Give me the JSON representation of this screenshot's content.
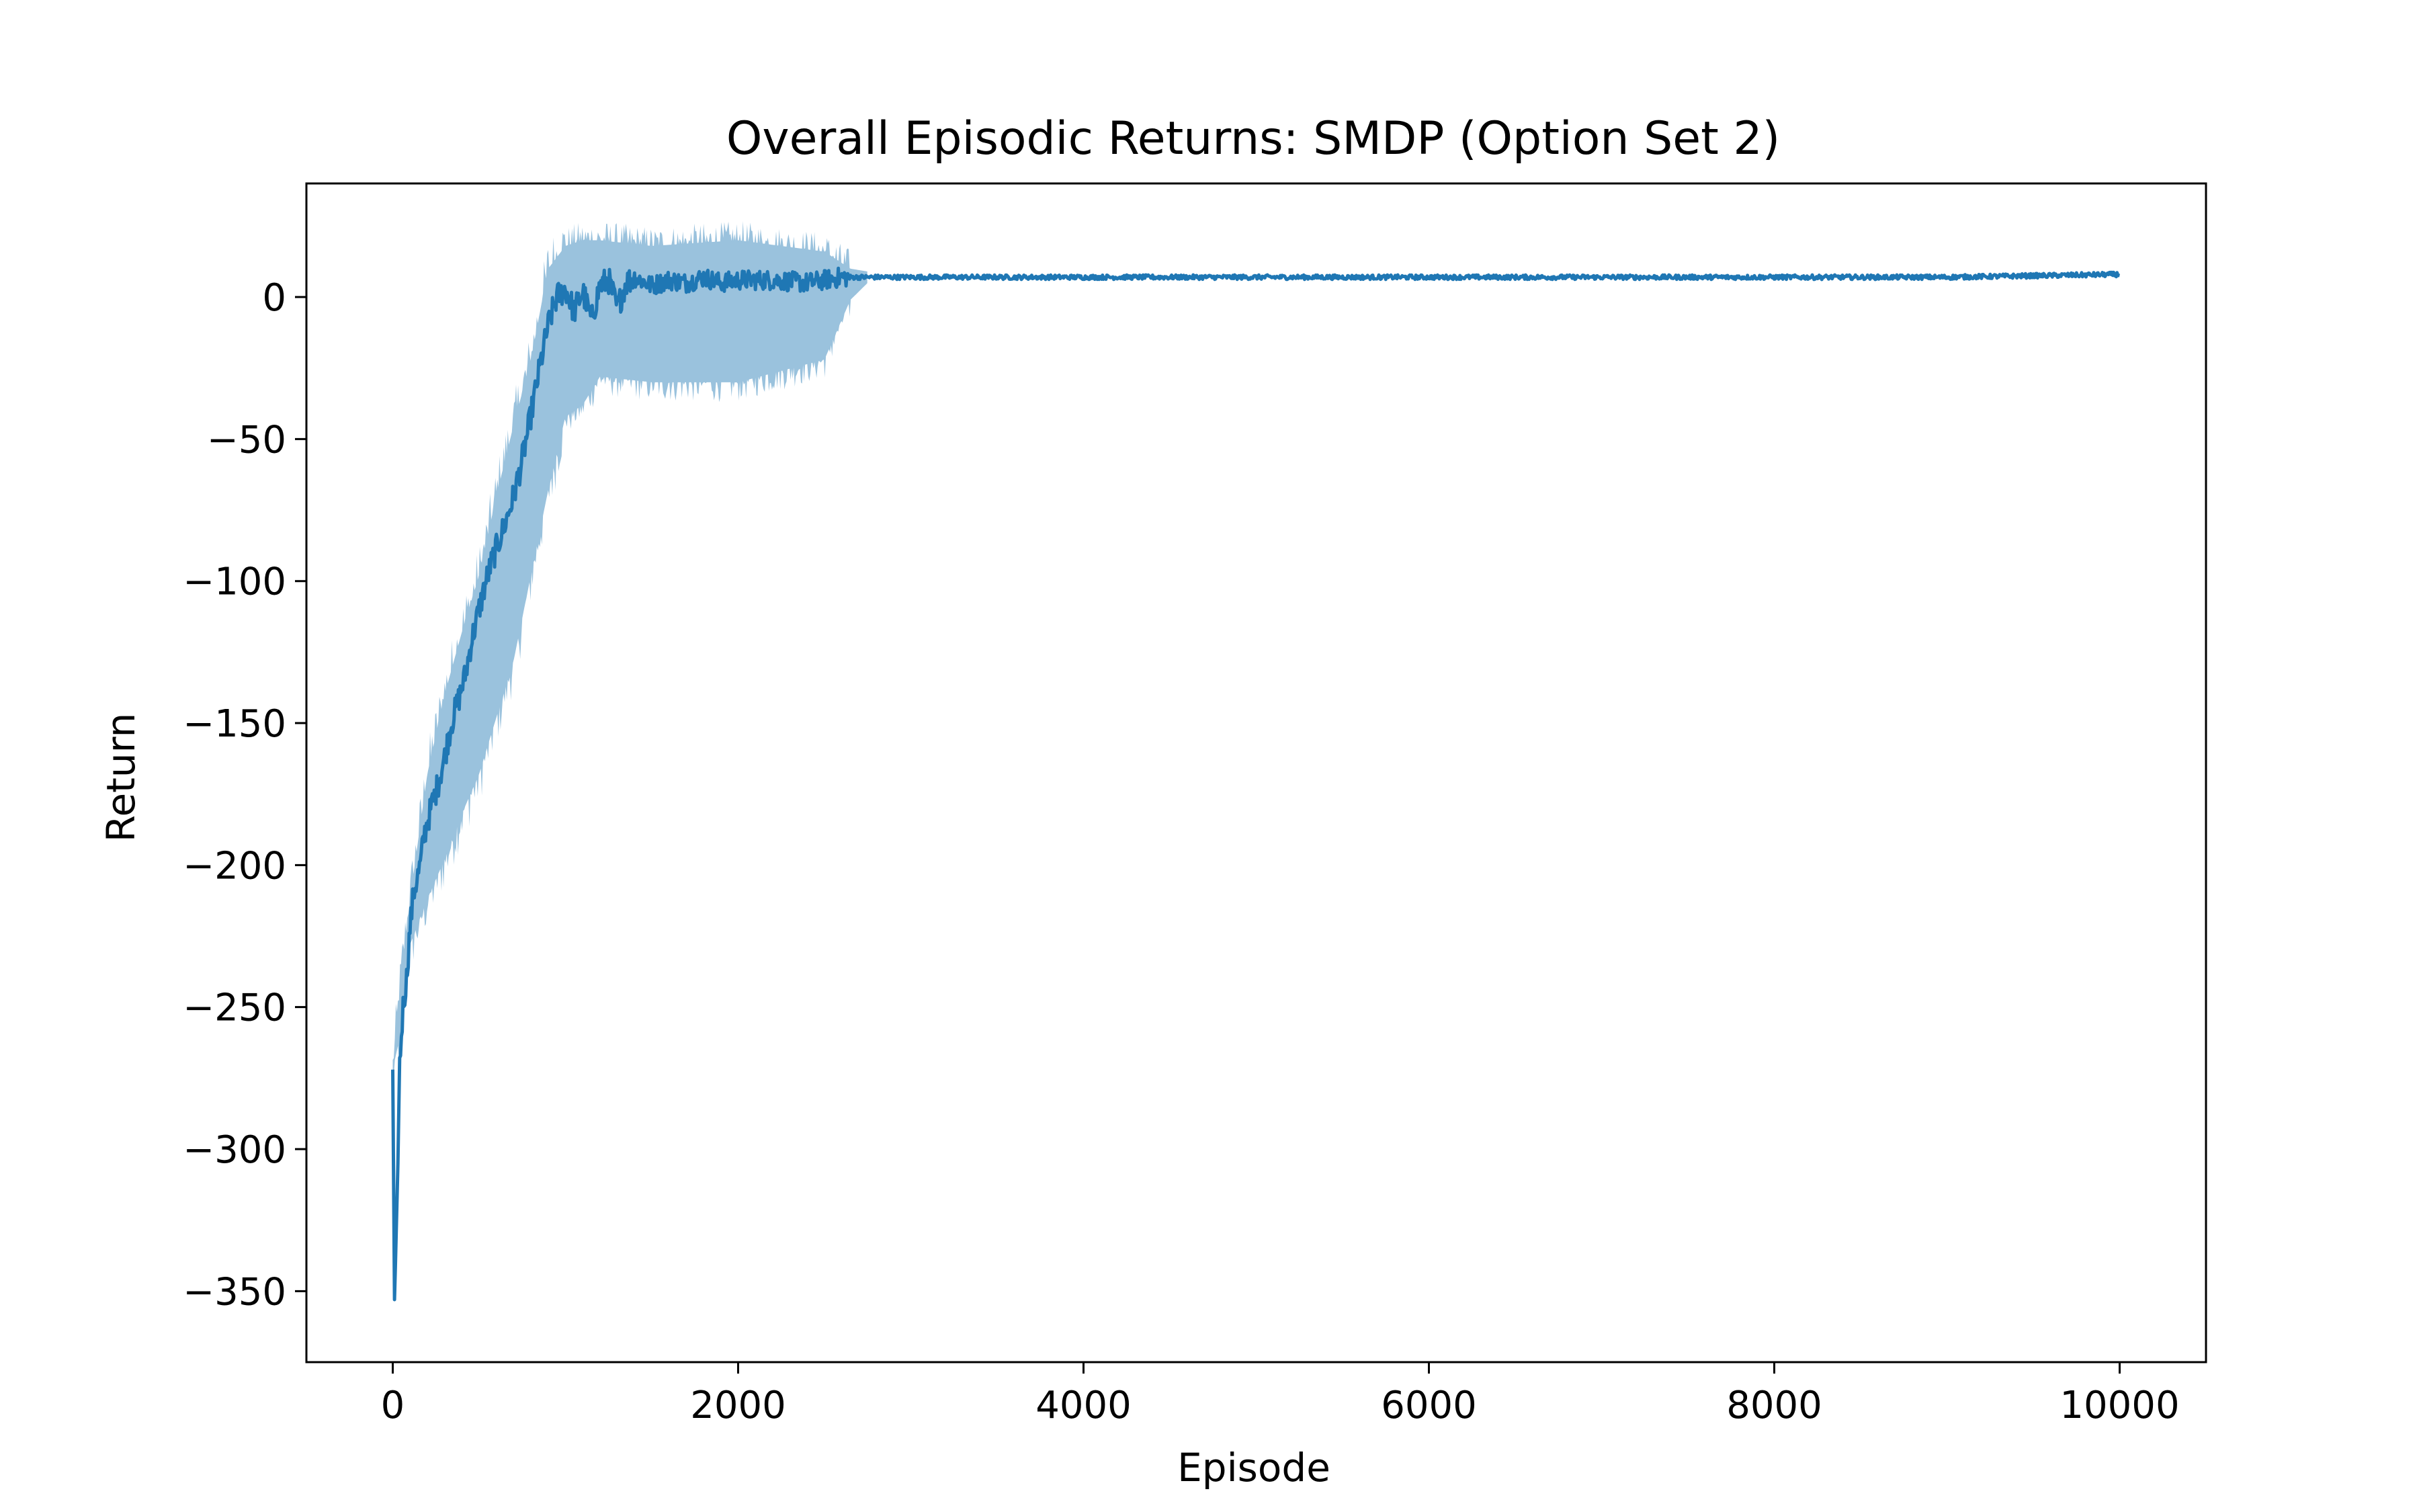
{
  "chart_data": {
    "type": "line",
    "title": "Overall Episodic Returns: SMDP (Option Set 2)",
    "xlabel": "Episode",
    "ylabel": "Return",
    "xlim": [
      -500,
      10500
    ],
    "ylim": [
      -375,
      40
    ],
    "xticks": [
      0,
      2000,
      4000,
      6000,
      8000,
      10000
    ],
    "xtick_labels": [
      "0",
      "2000",
      "4000",
      "6000",
      "8000",
      "10000"
    ],
    "yticks": [
      0,
      -50,
      -100,
      -150,
      -200,
      -250,
      -300,
      -350
    ],
    "ytick_labels": [
      "0",
      "−50",
      "−100",
      "−150",
      "−200",
      "−250",
      "−300",
      "−350"
    ],
    "grid": false,
    "legend": "none",
    "colors": {
      "line": "#1f77b4",
      "band": "#1f77b4",
      "frame": "#000000"
    },
    "series": [
      {
        "mean": {
          "x": [
            0,
            10,
            20,
            30,
            40,
            60,
            80,
            100,
            120,
            140,
            160,
            180,
            200,
            230,
            260,
            300,
            340,
            380,
            420,
            460,
            500,
            540,
            580,
            620,
            660,
            700,
            740,
            780,
            820,
            860,
            900,
            950,
            1000,
            1050,
            1100,
            1150,
            1200,
            1250,
            1300,
            1350,
            1400,
            1500,
            1600,
            1700,
            1800,
            1900,
            2000,
            2200,
            2400,
            2600,
            2700,
            3000,
            4000,
            5000,
            6000,
            7000,
            8000,
            9000,
            10000
          ],
          "y": [
            -272,
            -353,
            -330,
            -305,
            -270,
            -250,
            -240,
            -222,
            -210,
            -205,
            -200,
            -190,
            -185,
            -178,
            -172,
            -162,
            -150,
            -142,
            -133,
            -120,
            -110,
            -100,
            -92,
            -85,
            -78,
            -70,
            -60,
            -48,
            -35,
            -22,
            -10,
            0,
            3,
            -5,
            2,
            -8,
            4,
            6,
            -4,
            5,
            7,
            4,
            6,
            5,
            7,
            5,
            6,
            6,
            5,
            7,
            7,
            7,
            7,
            7,
            7,
            7,
            7,
            7,
            8
          ]
        },
        "band": {
          "x": [
            0,
            50,
            100,
            200,
            300,
            400,
            500,
            600,
            700,
            800,
            900,
            1000,
            1100,
            1200,
            1500,
            2000,
            2500,
            2650,
            2750
          ],
          "lower": [
            -272,
            -258,
            -228,
            -212,
            -198,
            -182,
            -168,
            -148,
            -128,
            -98,
            -68,
            -42,
            -38,
            -28,
            -30,
            -30,
            -22,
            -1,
            5
          ],
          "upper": [
            -272,
            -238,
            -212,
            -168,
            -140,
            -118,
            -98,
            -70,
            -45,
            -22,
            10,
            18,
            20,
            20,
            18,
            20,
            16,
            10,
            9
          ]
        }
      }
    ]
  }
}
